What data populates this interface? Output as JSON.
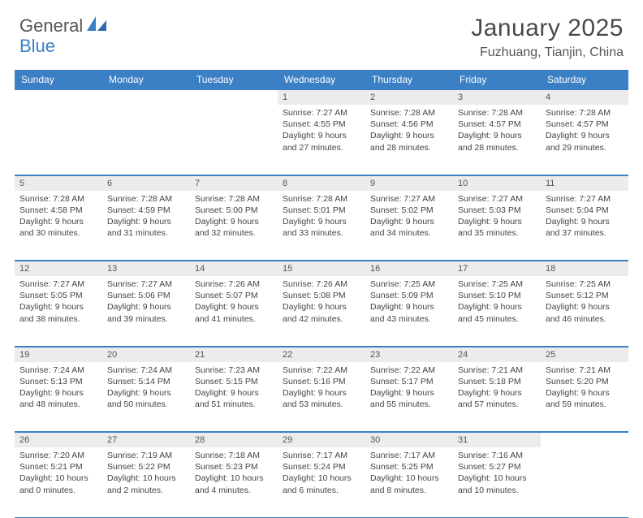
{
  "brand": {
    "name1": "General",
    "name2": "Blue"
  },
  "title": "January 2025",
  "location": "Fuzhuang, Tianjin, China",
  "colors": {
    "accent": "#3b7fc4",
    "daynum_bg": "#ececec",
    "text": "#444444",
    "heading": "#4a4a4a",
    "background": "#ffffff"
  },
  "days_of_week": [
    "Sunday",
    "Monday",
    "Tuesday",
    "Wednesday",
    "Thursday",
    "Friday",
    "Saturday"
  ],
  "weeks": [
    [
      null,
      null,
      null,
      {
        "n": "1",
        "sunrise": "7:27 AM",
        "sunset": "4:55 PM",
        "dl_h": "9",
        "dl_m": "27"
      },
      {
        "n": "2",
        "sunrise": "7:28 AM",
        "sunset": "4:56 PM",
        "dl_h": "9",
        "dl_m": "28"
      },
      {
        "n": "3",
        "sunrise": "7:28 AM",
        "sunset": "4:57 PM",
        "dl_h": "9",
        "dl_m": "28"
      },
      {
        "n": "4",
        "sunrise": "7:28 AM",
        "sunset": "4:57 PM",
        "dl_h": "9",
        "dl_m": "29"
      }
    ],
    [
      {
        "n": "5",
        "sunrise": "7:28 AM",
        "sunset": "4:58 PM",
        "dl_h": "9",
        "dl_m": "30"
      },
      {
        "n": "6",
        "sunrise": "7:28 AM",
        "sunset": "4:59 PM",
        "dl_h": "9",
        "dl_m": "31"
      },
      {
        "n": "7",
        "sunrise": "7:28 AM",
        "sunset": "5:00 PM",
        "dl_h": "9",
        "dl_m": "32"
      },
      {
        "n": "8",
        "sunrise": "7:28 AM",
        "sunset": "5:01 PM",
        "dl_h": "9",
        "dl_m": "33"
      },
      {
        "n": "9",
        "sunrise": "7:27 AM",
        "sunset": "5:02 PM",
        "dl_h": "9",
        "dl_m": "34"
      },
      {
        "n": "10",
        "sunrise": "7:27 AM",
        "sunset": "5:03 PM",
        "dl_h": "9",
        "dl_m": "35"
      },
      {
        "n": "11",
        "sunrise": "7:27 AM",
        "sunset": "5:04 PM",
        "dl_h": "9",
        "dl_m": "37"
      }
    ],
    [
      {
        "n": "12",
        "sunrise": "7:27 AM",
        "sunset": "5:05 PM",
        "dl_h": "9",
        "dl_m": "38"
      },
      {
        "n": "13",
        "sunrise": "7:27 AM",
        "sunset": "5:06 PM",
        "dl_h": "9",
        "dl_m": "39"
      },
      {
        "n": "14",
        "sunrise": "7:26 AM",
        "sunset": "5:07 PM",
        "dl_h": "9",
        "dl_m": "41"
      },
      {
        "n": "15",
        "sunrise": "7:26 AM",
        "sunset": "5:08 PM",
        "dl_h": "9",
        "dl_m": "42"
      },
      {
        "n": "16",
        "sunrise": "7:25 AM",
        "sunset": "5:09 PM",
        "dl_h": "9",
        "dl_m": "43"
      },
      {
        "n": "17",
        "sunrise": "7:25 AM",
        "sunset": "5:10 PM",
        "dl_h": "9",
        "dl_m": "45"
      },
      {
        "n": "18",
        "sunrise": "7:25 AM",
        "sunset": "5:12 PM",
        "dl_h": "9",
        "dl_m": "46"
      }
    ],
    [
      {
        "n": "19",
        "sunrise": "7:24 AM",
        "sunset": "5:13 PM",
        "dl_h": "9",
        "dl_m": "48"
      },
      {
        "n": "20",
        "sunrise": "7:24 AM",
        "sunset": "5:14 PM",
        "dl_h": "9",
        "dl_m": "50"
      },
      {
        "n": "21",
        "sunrise": "7:23 AM",
        "sunset": "5:15 PM",
        "dl_h": "9",
        "dl_m": "51"
      },
      {
        "n": "22",
        "sunrise": "7:22 AM",
        "sunset": "5:16 PM",
        "dl_h": "9",
        "dl_m": "53"
      },
      {
        "n": "23",
        "sunrise": "7:22 AM",
        "sunset": "5:17 PM",
        "dl_h": "9",
        "dl_m": "55"
      },
      {
        "n": "24",
        "sunrise": "7:21 AM",
        "sunset": "5:18 PM",
        "dl_h": "9",
        "dl_m": "57"
      },
      {
        "n": "25",
        "sunrise": "7:21 AM",
        "sunset": "5:20 PM",
        "dl_h": "9",
        "dl_m": "59"
      }
    ],
    [
      {
        "n": "26",
        "sunrise": "7:20 AM",
        "sunset": "5:21 PM",
        "dl_h": "10",
        "dl_m": "0"
      },
      {
        "n": "27",
        "sunrise": "7:19 AM",
        "sunset": "5:22 PM",
        "dl_h": "10",
        "dl_m": "2"
      },
      {
        "n": "28",
        "sunrise": "7:18 AM",
        "sunset": "5:23 PM",
        "dl_h": "10",
        "dl_m": "4"
      },
      {
        "n": "29",
        "sunrise": "7:17 AM",
        "sunset": "5:24 PM",
        "dl_h": "10",
        "dl_m": "6"
      },
      {
        "n": "30",
        "sunrise": "7:17 AM",
        "sunset": "5:25 PM",
        "dl_h": "10",
        "dl_m": "8"
      },
      {
        "n": "31",
        "sunrise": "7:16 AM",
        "sunset": "5:27 PM",
        "dl_h": "10",
        "dl_m": "10"
      },
      null
    ]
  ],
  "labels": {
    "sunrise": "Sunrise:",
    "sunset": "Sunset:",
    "daylight": "Daylight:",
    "hours": "hours",
    "and": "and",
    "minutes": "minutes."
  }
}
